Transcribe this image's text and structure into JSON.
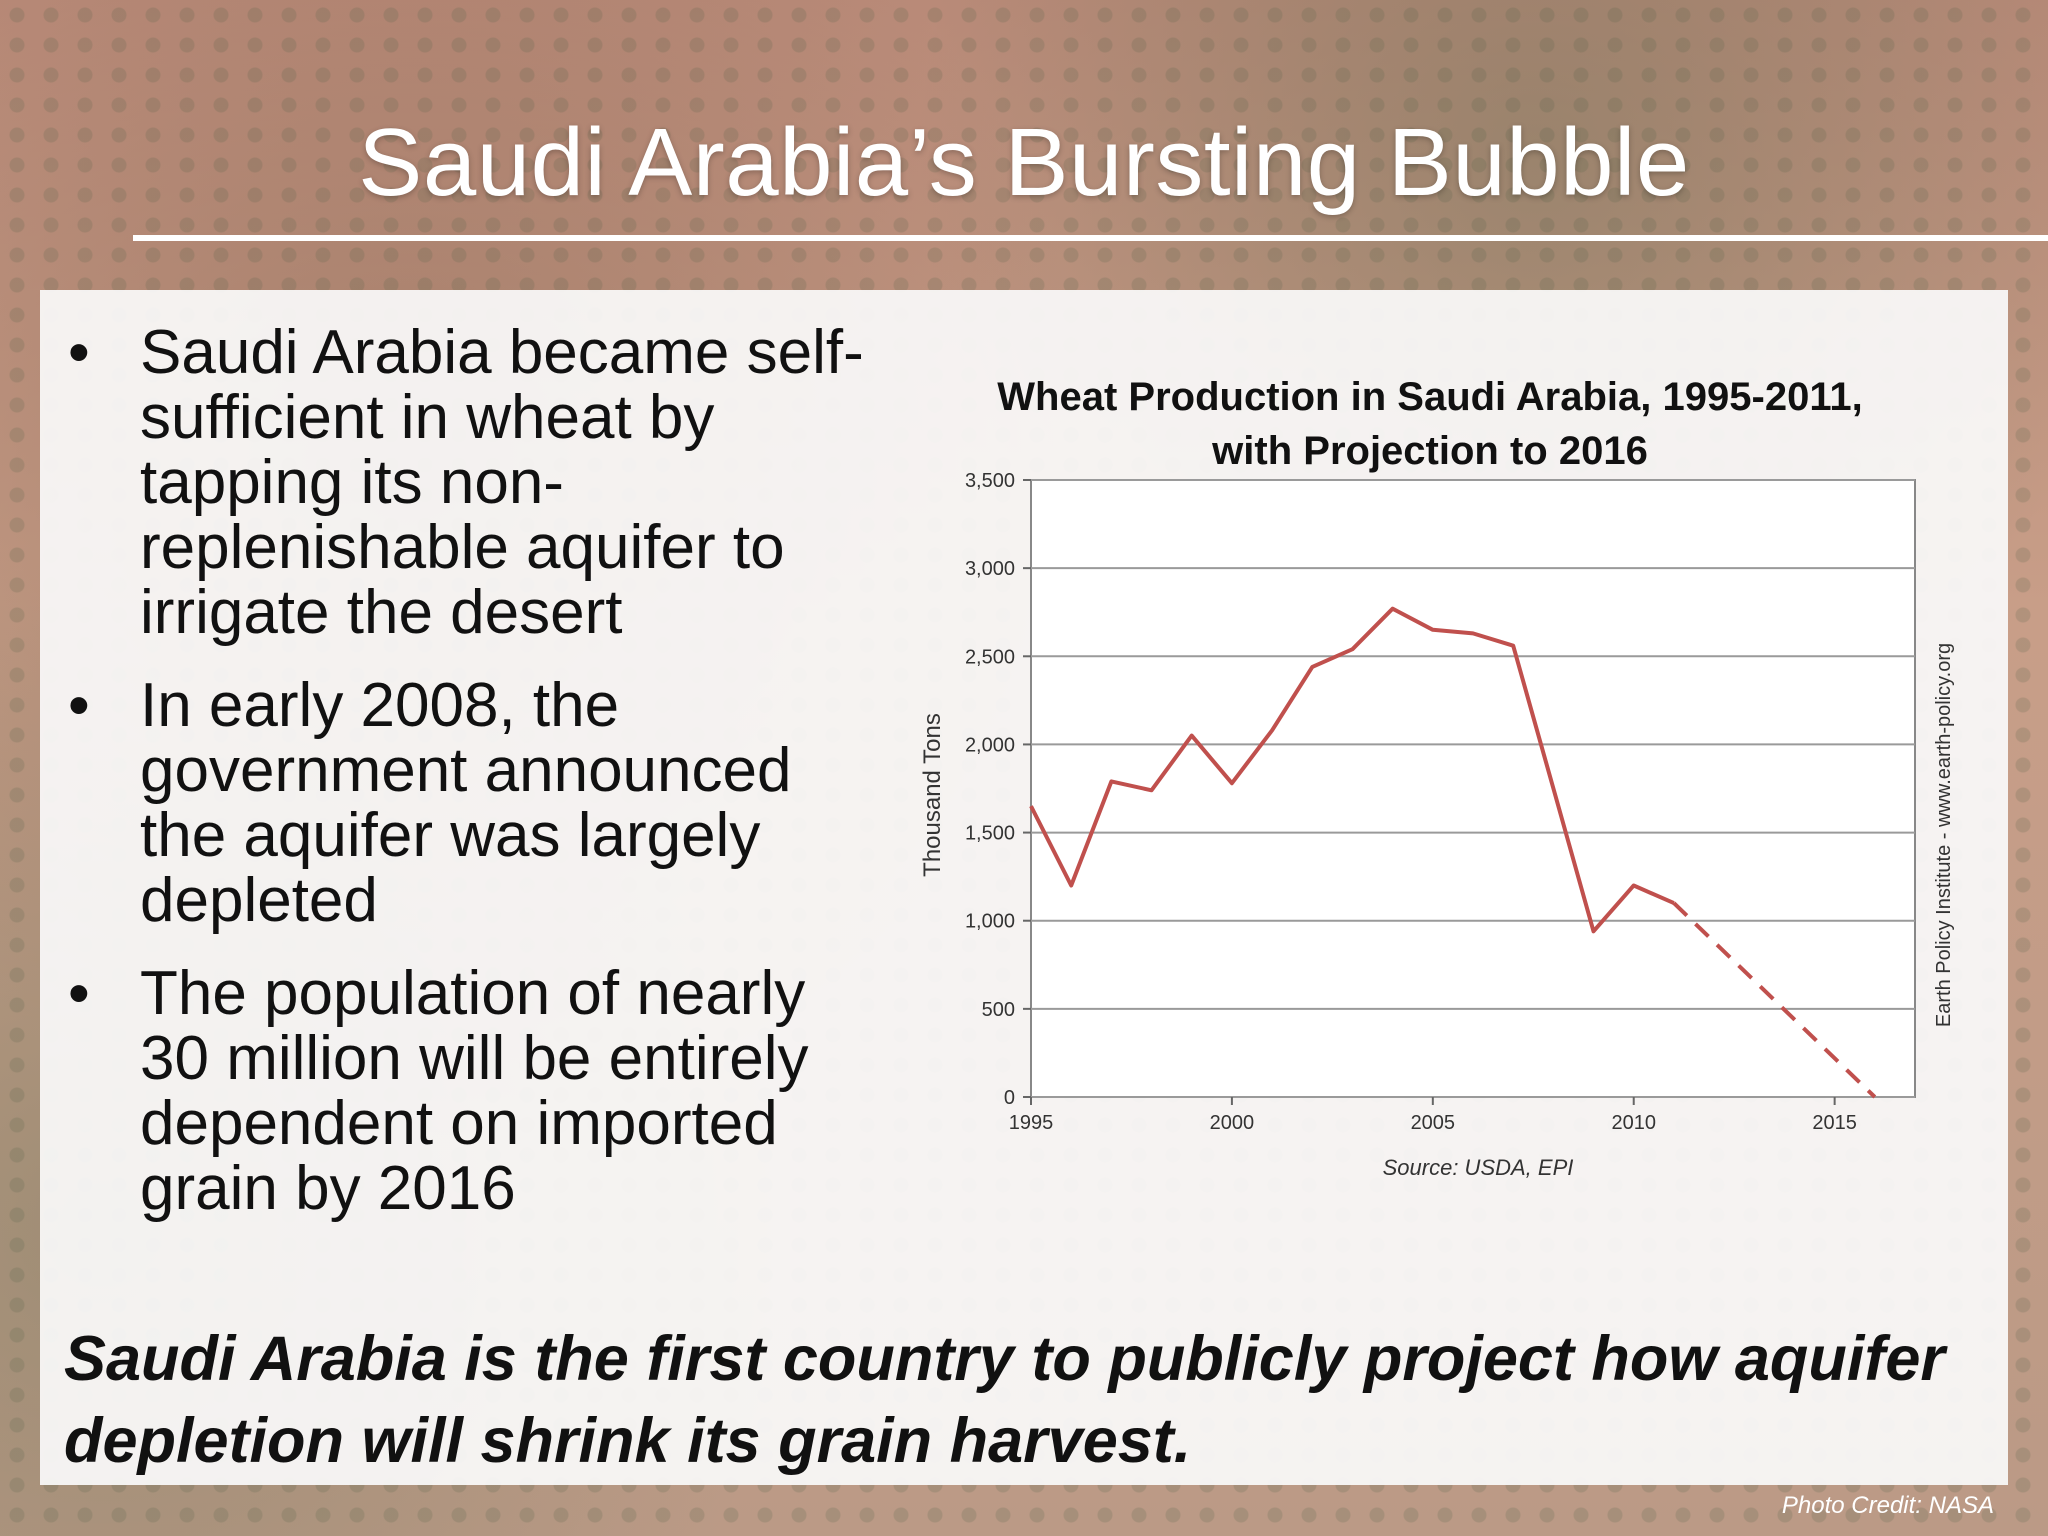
{
  "slide": {
    "title": "Saudi Arabia’s Bursting Bubble",
    "bullets": [
      "Saudi Arabia became self-sufficient in wheat by tapping its non-replenishable aquifer to irrigate the desert",
      "In early 2008, the government announced the aquifer was largely depleted",
      "The population of nearly 30 million will be entirely dependent on imported grain by 2016"
    ],
    "bullet_glyph": "•",
    "footnote": "Saudi Arabia is the first country to publicly project how aquifer depletion will shrink its grain harvest.",
    "photo_credit": "Photo Credit: NASA"
  },
  "chart_data": {
    "type": "line",
    "title": "Wheat Production in Saudi Arabia, 1995-2011, with Projection to 2016",
    "xlabel": "",
    "ylabel": "Thousand Tons",
    "source": "Source: USDA, EPI",
    "side_label": "Earth Policy Institute - www.earth-policy.org",
    "xlim": [
      1995,
      2017
    ],
    "ylim": [
      0,
      3500
    ],
    "x_ticks": [
      "1995",
      "2000",
      "2005",
      "2010",
      "2015"
    ],
    "y_ticks": [
      "0",
      "500",
      "1,000",
      "1,500",
      "2,000",
      "2,500",
      "3,000",
      "3,500"
    ],
    "grid": true,
    "line_color": "#c0504d",
    "series": [
      {
        "style": "solid",
        "x": [
          1995,
          1996,
          1997,
          1998,
          1999,
          2000,
          2001,
          2002,
          2003,
          2004,
          2005,
          2006,
          2007,
          2008,
          2009,
          2010,
          2011
        ],
        "values": [
          1650,
          1200,
          1790,
          1740,
          2050,
          1780,
          2080,
          2440,
          2540,
          2770,
          2650,
          2630,
          2560,
          1750,
          940,
          1200,
          1100
        ]
      },
      {
        "style": "dashed",
        "x": [
          2011,
          2016
        ],
        "values": [
          1100,
          0
        ]
      }
    ]
  }
}
